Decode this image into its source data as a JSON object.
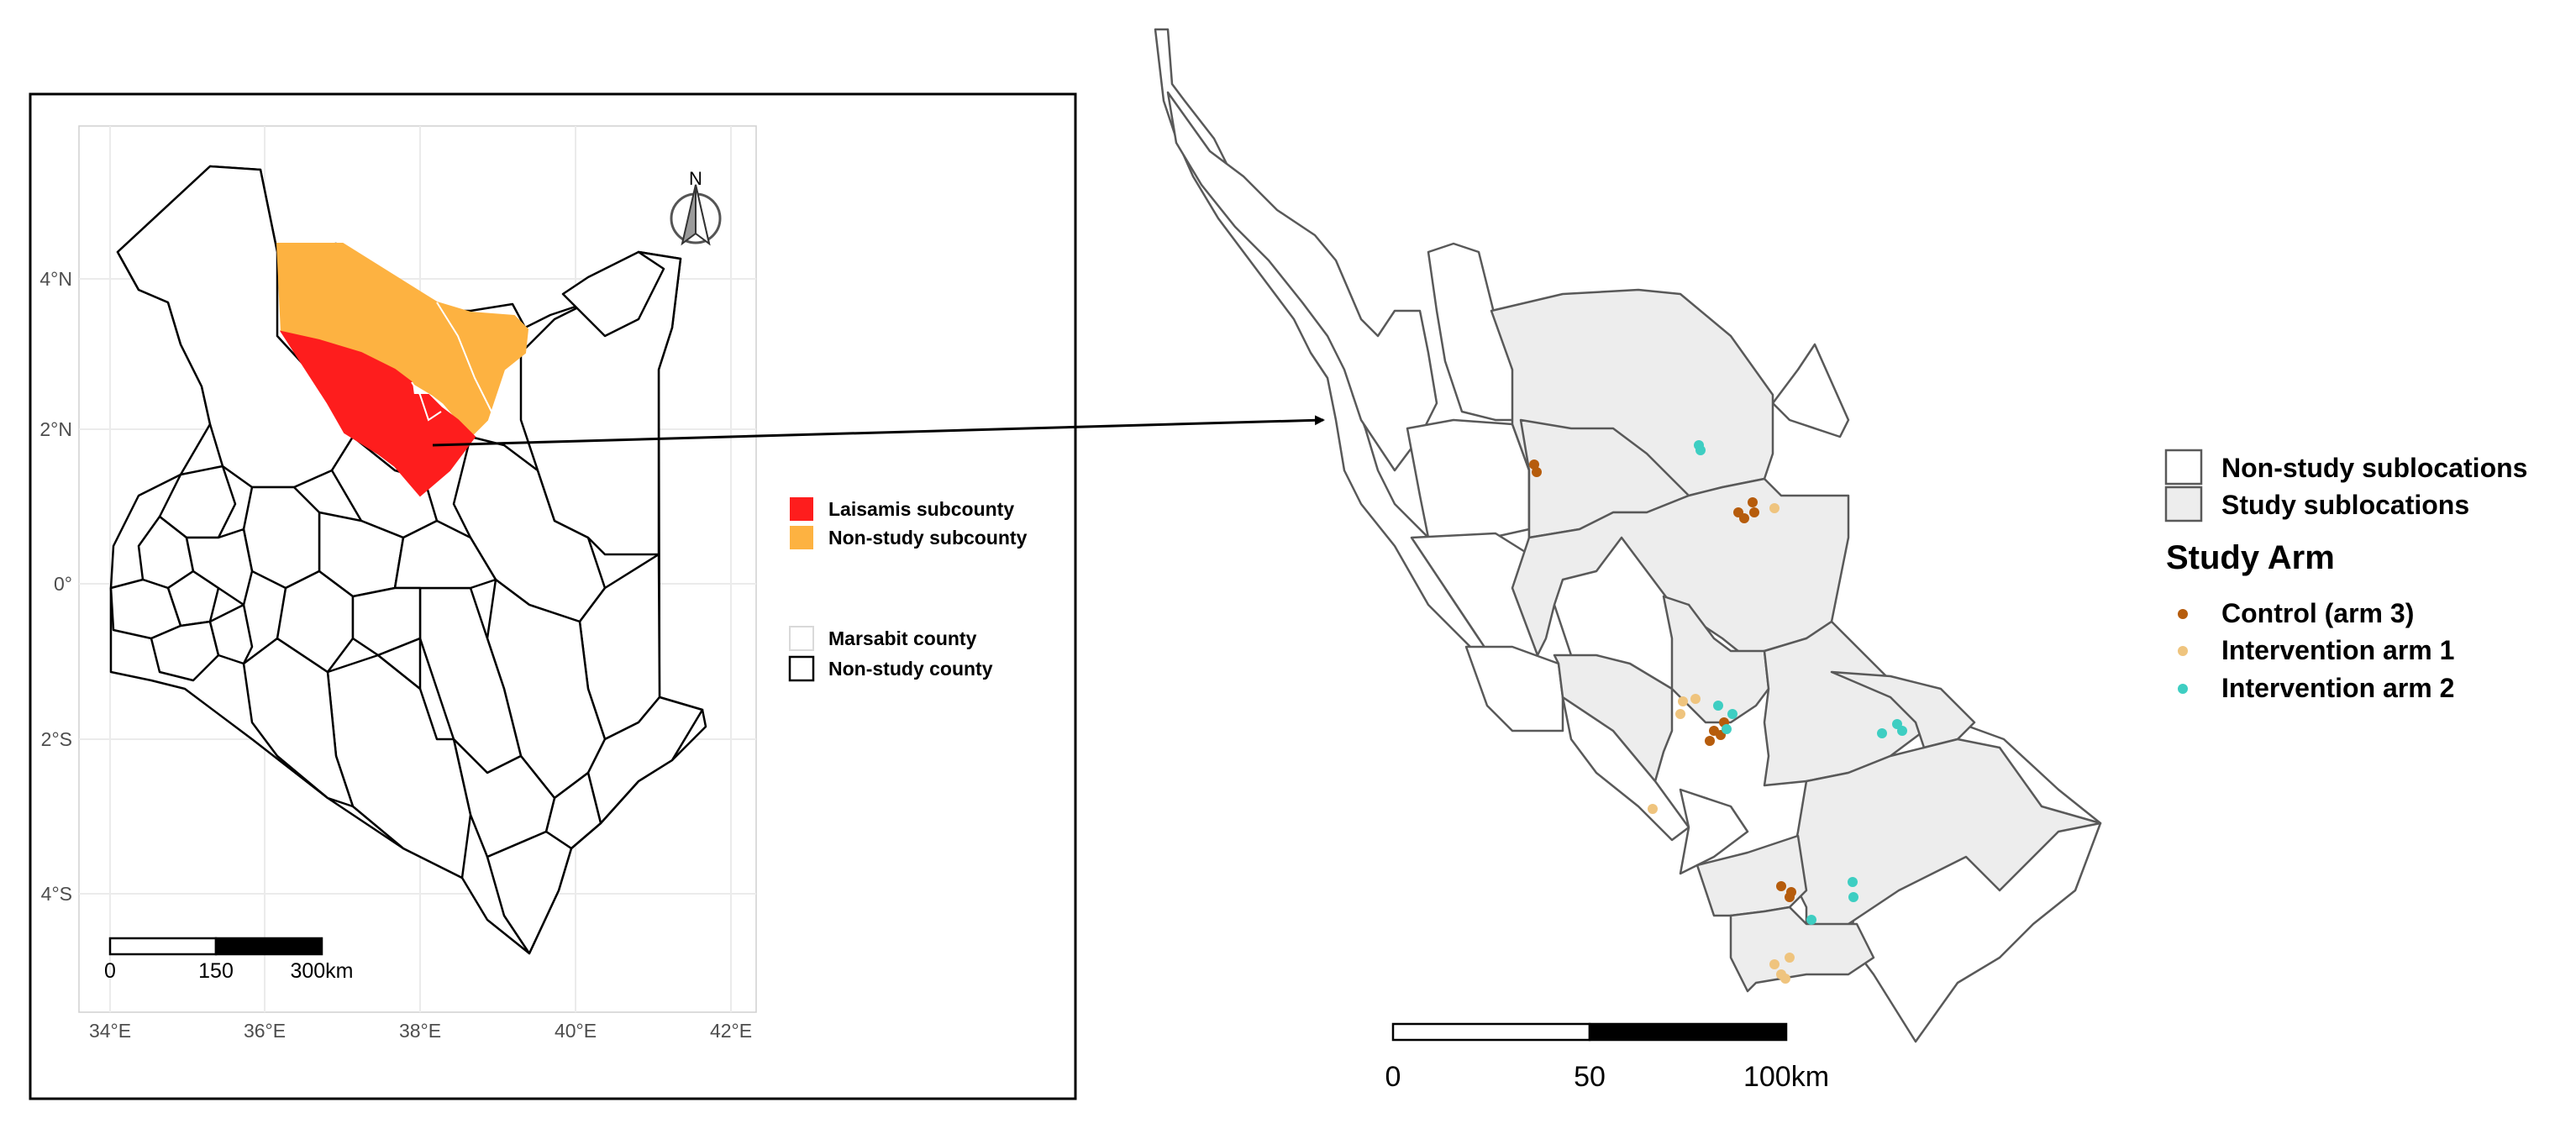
{
  "colors": {
    "laisamis": "#fe1d1d",
    "non_study_subcounty": "#fdb241",
    "study_fill": "#ededed",
    "control": "#b65c0c",
    "intervention1": "#efc47e",
    "intervention2": "#3ecec2",
    "grid": "#ebebeb",
    "county_border": "#000000",
    "sublocation_border": "#595959"
  },
  "left_map": {
    "north_label": "N",
    "y_ticks": [
      "4°N",
      "2°N",
      "0°",
      "2°S",
      "4°S"
    ],
    "x_ticks": [
      "34°E",
      "36°E",
      "38°E",
      "40°E",
      "42°E"
    ],
    "scalebar": {
      "labels": [
        "0",
        "150",
        "300km"
      ]
    },
    "legend": {
      "items": [
        {
          "label": "Laisamis subcounty",
          "color": "#fe1d1d"
        },
        {
          "label": "Non-study subcounty",
          "color": "#fdb241"
        },
        {
          "label": "Marsabit county",
          "color": "#ffffff",
          "border": "#d9d9d9"
        },
        {
          "label": "Non-study county",
          "color": "#ffffff",
          "border": "#000000"
        }
      ]
    }
  },
  "right_map": {
    "scalebar": {
      "labels": [
        "0",
        "50",
        "100km"
      ]
    },
    "legend": {
      "fill_items": [
        {
          "label": "Non-study sublocations",
          "color": "#ffffff"
        },
        {
          "label": "Study sublocations",
          "color": "#ededed"
        }
      ],
      "arm_title": "Study Arm",
      "arm_items": [
        {
          "label": "Control (arm 3)",
          "color": "#b65c0c"
        },
        {
          "label": "Intervention arm 1",
          "color": "#efc47e"
        },
        {
          "label": "Intervention arm 2",
          "color": "#3ecec2"
        }
      ]
    }
  }
}
